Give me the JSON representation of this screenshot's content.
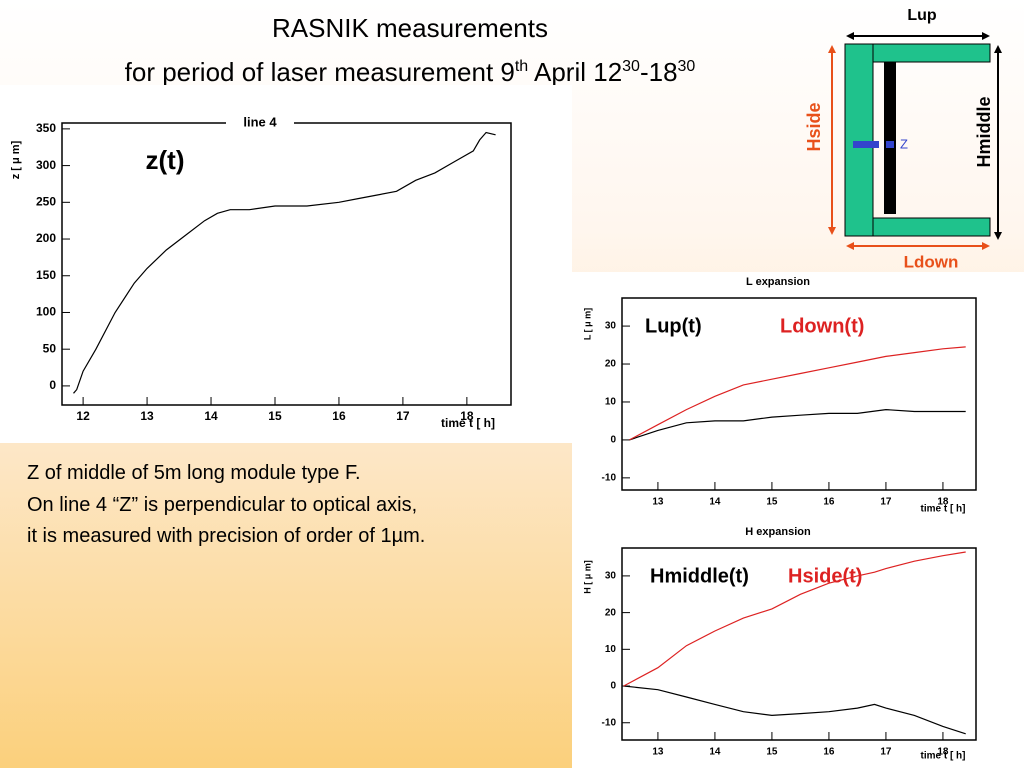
{
  "title": {
    "line1": "RASNIK measurements",
    "line2": [
      "for period of laser measurement 9",
      "th",
      " April 12",
      "30",
      "-18",
      "30"
    ]
  },
  "body": [
    "Z of middle of 5m long module type F.",
    "On line 4 “Z” is perpendicular to optical axis,",
    "it is measured with precision of order of 1µm."
  ],
  "diagram": {
    "top": "Lup",
    "left": "Hside",
    "right": "Hmiddle",
    "bottom": "Ldown",
    "marker": "Z"
  },
  "chart_data": [
    {
      "type": "line",
      "title": "line 4",
      "annotation": "z(t)",
      "xlabel": "time t [ h]",
      "ylabel": "z [ μ m]",
      "x": [
        11.85,
        11.9,
        12,
        12.2,
        12.5,
        12.8,
        13,
        13.3,
        13.6,
        13.9,
        14.1,
        14.3,
        14.6,
        15,
        15.5,
        16,
        16.3,
        16.6,
        16.9,
        17.2,
        17.5,
        17.8,
        18.1,
        18.2,
        18.3,
        18.45
      ],
      "values": [
        -10,
        -5,
        20,
        50,
        100,
        140,
        160,
        185,
        205,
        225,
        235,
        240,
        240,
        245,
        245,
        250,
        255,
        260,
        265,
        280,
        290,
        305,
        320,
        335,
        345,
        342
      ],
      "color": "#000000",
      "xlim": [
        11.67,
        18.69
      ],
      "xticks": [
        12,
        13,
        14,
        15,
        16,
        17,
        18
      ],
      "ylim": [
        -26,
        358
      ],
      "yticks": [
        0,
        50,
        100,
        150,
        200,
        250,
        300,
        350
      ]
    },
    {
      "type": "line",
      "title": "L expansion",
      "xlabel": "time t [ h]",
      "ylabel": "L [ μ m]",
      "x": [
        12.5,
        13,
        13.5,
        14,
        14.5,
        15,
        15.5,
        16,
        16.5,
        17,
        17.5,
        18,
        18.4
      ],
      "series": [
        {
          "name": "Lup(t)",
          "color": "#000000",
          "values": [
            0,
            2.5,
            4.5,
            5,
            5,
            6,
            6.5,
            7,
            7,
            8,
            7.5,
            7.5,
            7.5
          ]
        },
        {
          "name": "Ldown(t)",
          "color": "#dd2222",
          "values": [
            0,
            4,
            8,
            11.5,
            14.5,
            16,
            17.5,
            19,
            20.5,
            22,
            23,
            24,
            24.5
          ]
        }
      ],
      "xlim": [
        12.37,
        18.58
      ],
      "xticks": [
        13,
        14,
        15,
        16,
        17,
        18
      ],
      "ylim": [
        -13.2,
        37.4
      ],
      "yticks": [
        -10,
        0,
        10,
        20,
        30
      ]
    },
    {
      "type": "line",
      "title": "H expansion",
      "xlabel": "time t [ h]",
      "ylabel": "H [ μ m]",
      "x": [
        12.4,
        13,
        13.5,
        14,
        14.5,
        15,
        15.5,
        16,
        16.5,
        16.8,
        17,
        17.5,
        18,
        18.4
      ],
      "series": [
        {
          "name": "Hmiddle(t)",
          "color": "#000000",
          "values": [
            0,
            -1,
            -3,
            -5,
            -7,
            -8,
            -7.5,
            -7,
            -6,
            -5,
            -6,
            -8,
            -11,
            -13
          ]
        },
        {
          "name": "Hside(t)",
          "color": "#dd2222",
          "values": [
            0,
            5,
            11,
            15,
            18.5,
            21,
            25,
            28,
            30,
            31,
            32,
            34,
            35.5,
            36.5
          ]
        }
      ],
      "xlim": [
        12.37,
        18.58
      ],
      "xticks": [
        13,
        14,
        15,
        16,
        17,
        18
      ],
      "ylim": [
        -14.7,
        37.6
      ],
      "yticks": [
        -10,
        0,
        10,
        20,
        30
      ]
    }
  ]
}
